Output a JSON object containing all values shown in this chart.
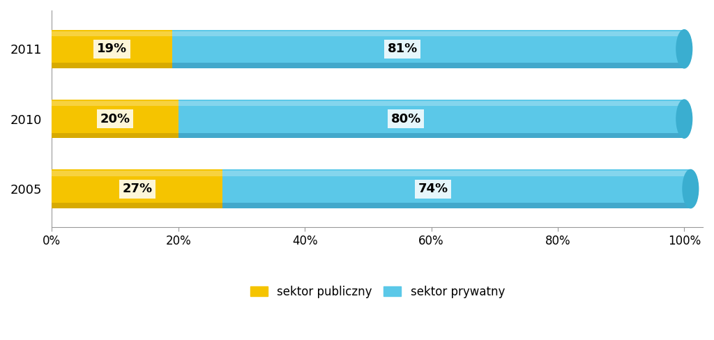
{
  "years": [
    "2005",
    "2010",
    "2011"
  ],
  "public_values": [
    27,
    20,
    19
  ],
  "private_values": [
    74,
    80,
    81
  ],
  "public_color": "#F5C400",
  "public_dark": "#C49A00",
  "private_color": "#5BC8E8",
  "private_dark": "#2A8AAF",
  "private_mid": "#3AAED0",
  "public_label": "sektor publiczny",
  "private_label": "sektor prywatny",
  "xtick_labels": [
    "0%",
    "20%",
    "40%",
    "60%",
    "80%",
    "100%"
  ],
  "xtick_values": [
    0,
    20,
    40,
    60,
    80,
    100
  ],
  "bar_height": 0.55,
  "label_fontsize": 13,
  "tick_fontsize": 12,
  "legend_fontsize": 12,
  "background_color": "#FFFFFF",
  "text_label_color": "#000000"
}
